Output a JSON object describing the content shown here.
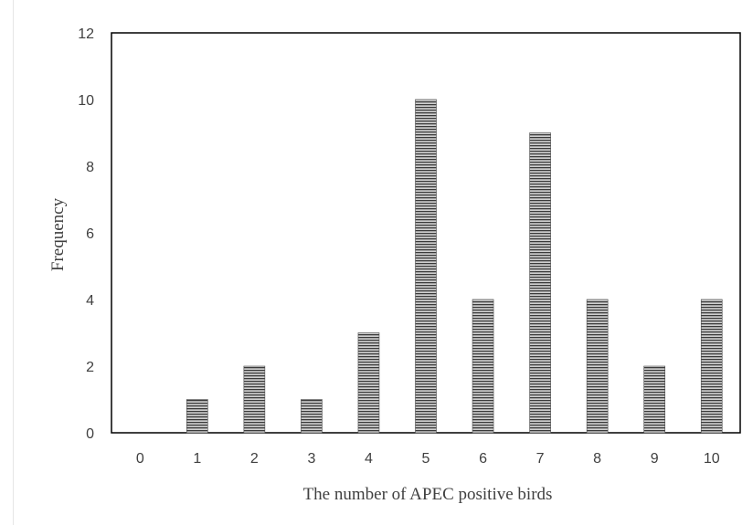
{
  "chart_data": {
    "type": "bar",
    "title": "",
    "xlabel": "The number of APEC positive birds",
    "ylabel": "Frequency",
    "categories": [
      "0",
      "1",
      "2",
      "3",
      "4",
      "5",
      "6",
      "7",
      "8",
      "9",
      "10"
    ],
    "values": [
      0,
      1,
      2,
      1,
      3,
      10,
      4,
      9,
      4,
      2,
      4
    ],
    "ylim": [
      0,
      12
    ],
    "yticks": [
      "0",
      "2",
      "4",
      "6",
      "8",
      "10",
      "12"
    ],
    "grid": false,
    "legend": "none",
    "bar_fill": "horizontal-hatch",
    "colors": {
      "bar_dark": "#3a3a3a",
      "bar_light": "#d0d0d0",
      "frame": "#000000",
      "text": "#404040"
    }
  }
}
